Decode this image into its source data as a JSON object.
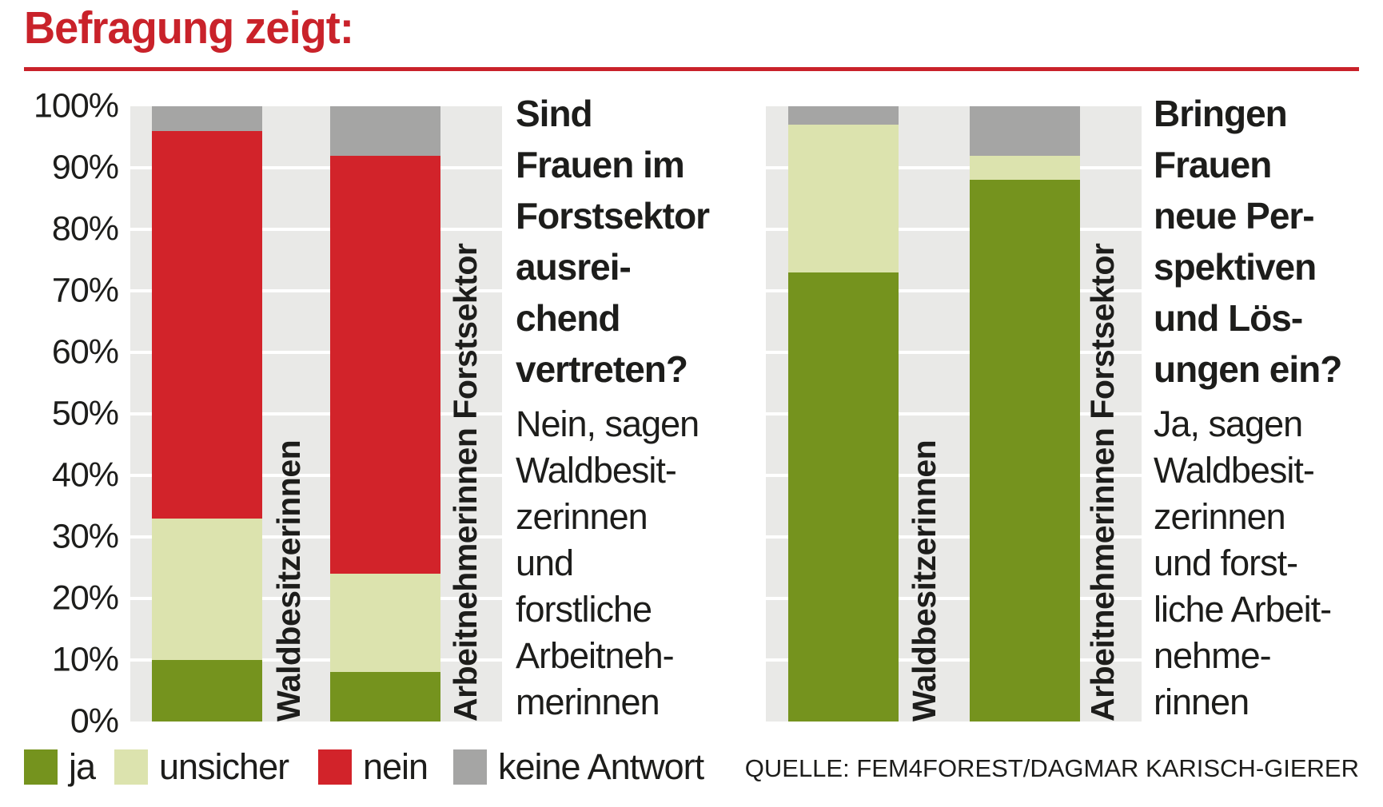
{
  "title": "Befragung zeigt:",
  "source": "QUELLE: FEM4FOREST/DAGMAR KARISCH-GIERER",
  "colors": {
    "ja": "#75931e",
    "unsicher": "#dce3ae",
    "nein": "#d2232a",
    "keine_antwort": "#a5a5a4",
    "title_red": "#c9222a",
    "plot_bg": "#e9e9e7",
    "grid": "#ffffff",
    "text": "#1d1d1b"
  },
  "legend": {
    "items": [
      {
        "key": "ja",
        "label": "ja"
      },
      {
        "key": "unsicher",
        "label": "unsicher"
      },
      {
        "key": "nein",
        "label": "nein"
      },
      {
        "key": "keine_antwort",
        "label": "keine Antwort"
      }
    ]
  },
  "left_text": {
    "question": "Sind\nFrauen im\nForstsektor\nausrei-\nchend\nvertreten?",
    "answer": "Nein, sagen\nWaldbesit-\nzerinnen\nund\nforstliche\nArbeitneh-\nmerinnen"
  },
  "right_text": {
    "question": "Bringen\nFrauen\nneue Per-\nspektiven\nund Lös-\nungen ein?",
    "answer": "Ja, sagen\nWaldbesit-\nzerinnen\nund forst-\nliche Arbeit-\nnehme-\nrinnen"
  },
  "chart_data": [
    {
      "type": "bar",
      "stacked": true,
      "title": "Sind Frauen im Forstsektor ausreichend vertreten?",
      "categories": [
        "Waldbesitzerinnen",
        "Arbeitnehmerinnen Forstsektor"
      ],
      "series": [
        {
          "key": "ja",
          "name": "ja",
          "values": [
            10,
            8
          ]
        },
        {
          "key": "unsicher",
          "name": "unsicher",
          "values": [
            23,
            16
          ]
        },
        {
          "key": "nein",
          "name": "nein",
          "values": [
            63,
            68
          ]
        },
        {
          "key": "keine_antwort",
          "name": "keine Antwort",
          "values": [
            4,
            8
          ]
        }
      ],
      "ylabel": "",
      "ylim": [
        0,
        100
      ],
      "y_ticks": [
        "100%",
        "90%",
        "80%",
        "70%",
        "60%",
        "50%",
        "40%",
        "30%",
        "20%",
        "10%",
        "0%"
      ],
      "grid": true,
      "legend_position": "bottom"
    },
    {
      "type": "bar",
      "stacked": true,
      "title": "Bringen Frauen neue Perspektiven und Lösungen ein?",
      "categories": [
        "Waldbesitzerinnen",
        "Arbeitnehmerinnen Forstsektor"
      ],
      "series": [
        {
          "key": "ja",
          "name": "ja",
          "values": [
            73,
            88
          ]
        },
        {
          "key": "unsicher",
          "name": "unsicher",
          "values": [
            24,
            4
          ]
        },
        {
          "key": "nein",
          "name": "nein",
          "values": [
            0,
            0
          ]
        },
        {
          "key": "keine_antwort",
          "name": "keine Antwort",
          "values": [
            3,
            8
          ]
        }
      ],
      "ylabel": "",
      "ylim": [
        0,
        100
      ],
      "y_ticks": [
        "100%",
        "90%",
        "80%",
        "70%",
        "60%",
        "50%",
        "40%",
        "30%",
        "20%",
        "10%",
        "0%"
      ],
      "grid": true,
      "legend_position": "bottom"
    }
  ]
}
